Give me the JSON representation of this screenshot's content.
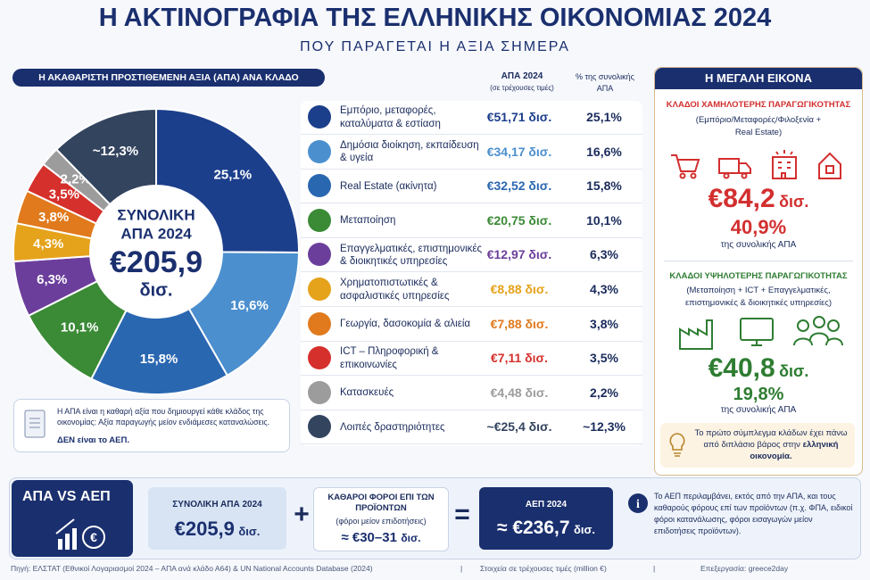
{
  "header": {
    "title": "Η ΑΚΤΙΝΟΓΡΑΦΙΑ ΤΗΣ ΕΛΛΗΝΙΚΗΣ ΟΙΚΟΝΟΜΙΑΣ 2024",
    "subtitle": "ΠΟΥ ΠΑΡΑΓΕΤΑΙ Η ΑΞΙΑ ΣΗΜΕΡΑ"
  },
  "chart_data": {
    "type": "donut",
    "title": "Η ΑΚΑΘΑΡΙΣΤΗ ΠΡΟΣΤΙΘΕΜΕΝΗ ΑΞΙΑ (ΑΠΑ) ΑΝΑ ΚΛΑΔΟ",
    "categories": [
      "Εμπόριο, μεταφορές, καταλύματα & εστίαση",
      "Δημόσια διοίκηση, εκπαίδευση & υγεία",
      "Real Estate (ακίνητα)",
      "Μεταποίηση",
      "Επαγγελματικές, επιστημονικές & διοικητικές υπηρεσίες",
      "Χρηματοπιστωτικές & ασφαλιστικές υπηρεσίες",
      "Γεωργία, δασοκομία & αλιεία",
      "ICT – Πληροφορική & επικοινωνίες",
      "Κατασκευές",
      "Λοιπές δραστηριότητες"
    ],
    "values": [
      25.1,
      16.6,
      15.8,
      10.1,
      6.3,
      4.3,
      3.8,
      3.5,
      2.2,
      12.3
    ],
    "value_labels": [
      "25,1%",
      "16,6%",
      "15,8%",
      "10,1%",
      "6,3%",
      "4,3%",
      "3,8%",
      "3,5%",
      "2,2%",
      "~12,3%"
    ],
    "colors": [
      "#1c3f8c",
      "#4b8fcf",
      "#2a67b1",
      "#3b8a36",
      "#6b3e9c",
      "#e5a21b",
      "#e07a1d",
      "#d5302c",
      "#9c9c9c",
      "#33445f"
    ],
    "center_text": [
      "ΣΥΝΟΛΙΚΗ",
      "ΑΠΑ 2024",
      "€205,9",
      "δισ."
    ]
  },
  "table": {
    "headers": [
      "ΑΠΑ 2024",
      "(σε τρέχουσες τιμές)",
      "% της συνολικής ΑΠΑ"
    ],
    "amounts": [
      "€51,71 δισ.",
      "€34,17 δισ.",
      "€32,52 δισ.",
      "€20,75 δισ.",
      "€12,97 δισ.",
      "€8,88 δισ.",
      "€7,88 δισ.",
      "€7,11 δισ.",
      "€4,48 δισ.",
      "~€25,4 δισ."
    ]
  },
  "definition_note": {
    "text": "Η ΑΠΑ είναι η καθαρή αξία που δημιουργεί κάθε κλάδος της οικονομίας: Αξία παραγωγής μείον ενδιάμεσες καταναλώσεις.",
    "emphasis": "ΔΕΝ είναι το ΑΕΠ."
  },
  "sidebar": {
    "title": "Η ΜΕΓΑΛΗ ΕΙΚΟΝΑ",
    "low": {
      "title": "ΚΛΑΔΟΙ ΧΑΜΗΛΟΤΕΡΗΣ ΠΑΡΑΓΩΓΙΚΟΤΗΤΑΣ",
      "subtitle": "(Εμπόριο/Μεταφορές/Φιλοξενία + Real Estate)",
      "amount": "€84,2",
      "unit": "δισ.",
      "share": "40,9%",
      "share_note": "της συνολικής ΑΠΑ"
    },
    "high": {
      "title": "ΚΛΑΔΟΙ ΥΨΗΛΟΤΕΡΗΣ ΠΑΡΑΓΩΓΙΚΟΤΗΤΑΣ",
      "subtitle": "(Μεταποίηση + ICT + Επαγγελματικές, επιστημονικές & διοικητικές υπηρεσίες)",
      "amount": "€40,8",
      "unit": "δισ.",
      "share": "19,8%",
      "share_note": "της συνολικής ΑΠΑ"
    },
    "note": "Το πρώτο σύμπλεγμα κλάδων έχει πάνω από διπλάσιο βάρος στην",
    "note_emphasis": "ελληνική οικονομία."
  },
  "comparison": {
    "title": "ΑΠΑ VS ΑΕΠ",
    "gva_label": "ΣΥΝΟΛΙΚΗ ΑΠΑ 2024",
    "gva_amount": "€205,9",
    "gva_unit": "δισ.",
    "plus": "+",
    "tax_label": "ΚΑΘΑΡΟΙ ΦΟΡΟΙ ΕΠΙ ΤΩΝ ΠΡΟΪΟΝΤΩΝ",
    "tax_note": "(φόροι μείον επιδοτήσεις)",
    "tax_amount": "≈ €30–31",
    "tax_unit": "δισ.",
    "equals": "=",
    "gdp_label": "ΑΕΠ 2024",
    "gdp_amount": "≈ €236,7",
    "gdp_unit": "δισ.",
    "info": "Το ΑΕΠ περιλαμβάνει, εκτός από την ΑΠΑ, και τους καθαρούς φόρους επί των προϊόντων (π.χ. ΦΠΑ, ειδικοί φόροι κατανάλωσης, φόροι εισαγωγών μείον επιδοτήσεις προϊόντων)."
  },
  "footer": {
    "source": "Πηγή: ΕΛΣΤΑΤ (Εθνικοί Λογαριασμοί 2024 – ΑΠΑ ανά κλάδο Α64) & UN National Accounts Database (2024)",
    "separator": "|",
    "prices": "Στοιχεία σε τρέχουσες τιμές (million €)",
    "credit": "Επεξεργασία: greece2day"
  }
}
